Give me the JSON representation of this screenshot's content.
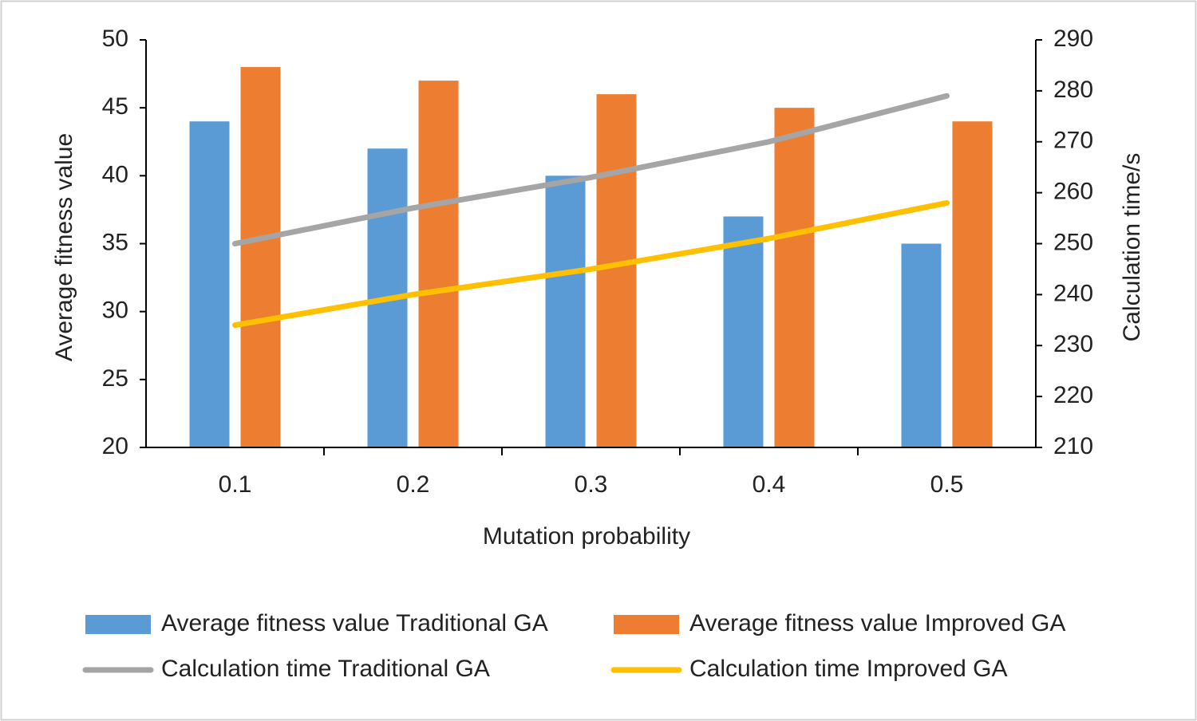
{
  "chart_data": {
    "type": "combo",
    "x_label": "Mutation probability",
    "y_label": "Average fitness value",
    "y2_label": "Calculation time/s",
    "categories": [
      "0.1",
      "0.2",
      "0.3",
      "0.4",
      "0.5"
    ],
    "ylim": [
      20,
      50
    ],
    "yticks": [
      20,
      25,
      30,
      35,
      40,
      45,
      50
    ],
    "y2lim": [
      210,
      290
    ],
    "y2ticks": [
      210,
      220,
      230,
      240,
      250,
      260,
      270,
      280,
      290
    ],
    "series": [
      {
        "name": "Average fitness value Traditional GA",
        "type": "bar",
        "color": "#5b9bd5",
        "values": [
          44,
          42,
          40,
          37,
          35
        ]
      },
      {
        "name": "Average fitness value Improved GA",
        "type": "bar",
        "color": "#ed7d31",
        "values": [
          48,
          47,
          46,
          45,
          44
        ]
      },
      {
        "name": "Calculation time Traditional GA",
        "type": "line",
        "axis": "y2",
        "color": "#a5a5a5",
        "values": [
          250,
          257,
          263,
          270,
          279
        ]
      },
      {
        "name": "Calculation time Improved GA",
        "type": "line",
        "axis": "y2",
        "color": "#ffc000",
        "values": [
          234,
          240,
          245,
          251,
          258
        ]
      }
    ],
    "legend": "bottom"
  }
}
